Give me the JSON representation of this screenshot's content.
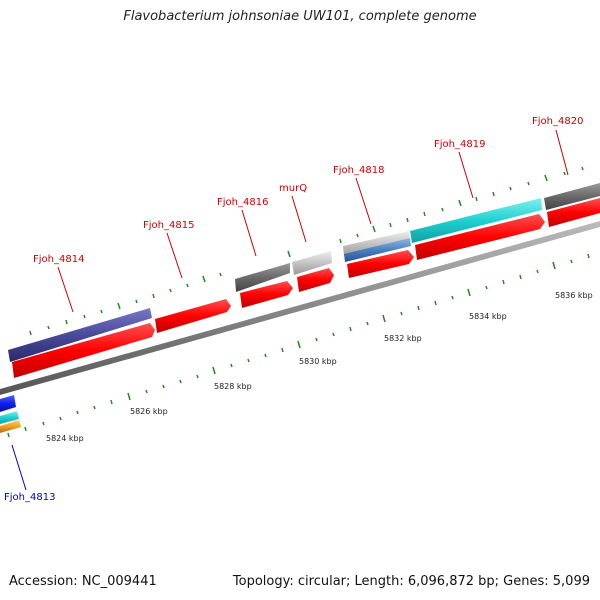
{
  "title": "Flavobacterium johnsoniae UW101, complete genome",
  "accession": "Accession: NC_009441",
  "summary": "Topology: circular; Length: 6,096,872 bp; Genes: 5,099",
  "chart_data": {
    "type": "genome-map",
    "genes": [
      {
        "name": "Fjoh_4813",
        "label_color": "blue"
      },
      {
        "name": "Fjoh_4814",
        "label_color": "red"
      },
      {
        "name": "Fjoh_4815",
        "label_color": "red"
      },
      {
        "name": "Fjoh_4816",
        "label_color": "red"
      },
      {
        "name": "murQ",
        "label_color": "red"
      },
      {
        "name": "Fjoh_4818",
        "label_color": "red"
      },
      {
        "name": "Fjoh_4819",
        "label_color": "red"
      },
      {
        "name": "Fjoh_4820",
        "label_color": "red"
      }
    ],
    "kbp_ticks": [
      "5824 kbp",
      "5826 kbp",
      "5828 kbp",
      "5830 kbp",
      "5832 kbp",
      "5834 kbp",
      "5836 kbp"
    ],
    "colors": {
      "cds": "#ff0000",
      "backbone": "#888888",
      "tick": "#228822",
      "gene_purple": "#4a4a9a",
      "gene_gray": "#6a6a6a",
      "gene_lightgray": "#c4c4c4",
      "gene_cyan": "#20d0d0",
      "gene_blue": "#1020ee",
      "gene_orange": "#f0a020",
      "gene_steel": "#4a80c0"
    }
  }
}
